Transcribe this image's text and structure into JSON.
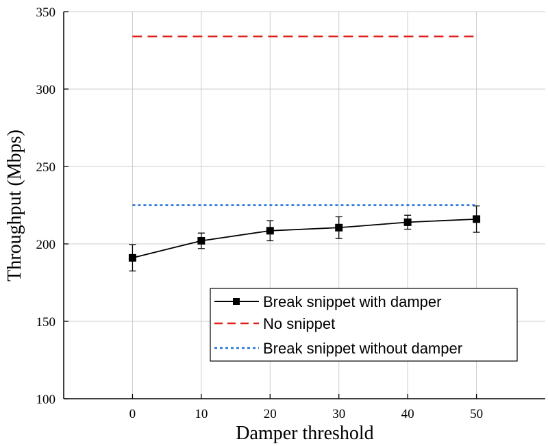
{
  "chart_data": {
    "type": "line",
    "xlabel": "Damper threshold",
    "ylabel": "Throughput (Mbps)",
    "xlim": [
      -10,
      60
    ],
    "ylim": [
      100,
      350
    ],
    "x_ticks": [
      0,
      10,
      20,
      30,
      40,
      50
    ],
    "y_ticks": [
      100,
      150,
      200,
      250,
      300,
      350
    ],
    "grid": true,
    "legend_position": "lower-right",
    "series": [
      {
        "name": "Break snippet with damper",
        "style": "solid",
        "marker": "square",
        "color": "#000000",
        "x": [
          0,
          10,
          20,
          30,
          40,
          50
        ],
        "y": [
          191,
          202,
          208.5,
          210.5,
          214,
          216
        ],
        "error": [
          8.5,
          5,
          6.5,
          7,
          4.5,
          8.5
        ]
      },
      {
        "name": "No snippet",
        "style": "dashed",
        "color": "#e0211b",
        "x": [
          0,
          50
        ],
        "y": [
          334,
          334
        ]
      },
      {
        "name": "Break snippet without damper",
        "style": "dotted",
        "color": "#1f6fd6",
        "x": [
          0,
          50
        ],
        "y": [
          225,
          225
        ]
      }
    ]
  }
}
